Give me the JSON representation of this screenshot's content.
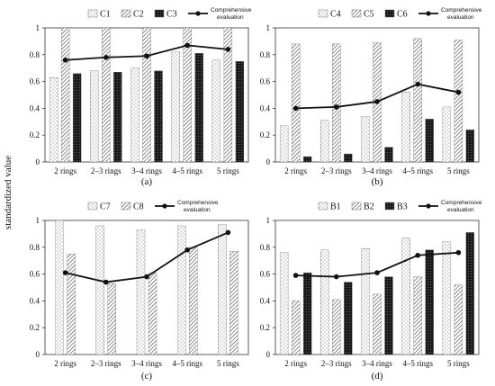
{
  "y_axis_label": "standardized value",
  "chart_data": [
    {
      "type": "bar",
      "panel_label": "(a)",
      "categories": [
        "2 rings",
        "2–3 rings",
        "3–4 rings",
        "4–5 rings",
        "5 rings"
      ],
      "series": [
        {
          "name": "C1",
          "values": [
            0.63,
            0.68,
            0.7,
            0.82,
            0.76
          ],
          "pattern": "dots"
        },
        {
          "name": "C2",
          "values": [
            1.0,
            1.0,
            1.0,
            1.0,
            1.0
          ],
          "pattern": "diag"
        },
        {
          "name": "C3",
          "values": [
            0.66,
            0.67,
            0.68,
            0.81,
            0.75
          ],
          "pattern": "dark"
        }
      ],
      "line": {
        "name": "Comprehensive evaluation",
        "values": [
          0.76,
          0.78,
          0.79,
          0.87,
          0.84
        ]
      },
      "ylim": [
        0,
        1
      ],
      "yticks": [
        "0",
        "0.2",
        "0.4",
        "0.6",
        "0.8",
        "1"
      ],
      "legend": "top"
    },
    {
      "type": "bar",
      "panel_label": "(b)",
      "categories": [
        "2 rings",
        "2–3 rings",
        "3–4 rings",
        "4–5 rings",
        "5 rings"
      ],
      "series": [
        {
          "name": "C4",
          "values": [
            0.27,
            0.31,
            0.34,
            0.52,
            0.41
          ],
          "pattern": "dots"
        },
        {
          "name": "C5",
          "values": [
            0.88,
            0.88,
            0.89,
            0.92,
            0.91
          ],
          "pattern": "diag"
        },
        {
          "name": "C6",
          "values": [
            0.04,
            0.06,
            0.11,
            0.32,
            0.24
          ],
          "pattern": "dark"
        }
      ],
      "line": {
        "name": "Comprehensive evaluation",
        "values": [
          0.4,
          0.41,
          0.45,
          0.58,
          0.52
        ]
      },
      "ylim": [
        0,
        1
      ],
      "yticks": [
        "0",
        "0.2",
        "0.4",
        "0.6",
        "0.8",
        "1"
      ],
      "legend": "top"
    },
    {
      "type": "bar",
      "panel_label": "(c)",
      "categories": [
        "2 rings",
        "2–3 rings",
        "3–4 rings",
        "4–5 rings",
        "5 rings"
      ],
      "series": [
        {
          "name": "C7",
          "values": [
            1.0,
            0.96,
            0.93,
            0.96,
            0.97
          ],
          "pattern": "dots"
        },
        {
          "name": "C8",
          "values": [
            0.75,
            0.53,
            0.61,
            0.8,
            0.77
          ],
          "pattern": "diag"
        }
      ],
      "line": {
        "name": "Comprehensive evaluation",
        "values": [
          0.61,
          0.54,
          0.58,
          0.78,
          0.91
        ]
      },
      "ylim": [
        0,
        1
      ],
      "yticks": [
        "0",
        "0.2",
        "0.4",
        "0.6",
        "0.8",
        "1"
      ],
      "legend": "top"
    },
    {
      "type": "bar",
      "panel_label": "(d)",
      "categories": [
        "2 rings",
        "2–3 rings",
        "3–4 rings",
        "4–5 rings",
        "5 rings"
      ],
      "series": [
        {
          "name": "B1",
          "values": [
            0.76,
            0.78,
            0.79,
            0.87,
            0.84
          ],
          "pattern": "dots"
        },
        {
          "name": "B2",
          "values": [
            0.4,
            0.41,
            0.45,
            0.58,
            0.52
          ],
          "pattern": "diag"
        },
        {
          "name": "B3",
          "values": [
            0.61,
            0.54,
            0.58,
            0.78,
            0.91
          ],
          "pattern": "dark"
        }
      ],
      "line": {
        "name": "Comprehensive evaluation",
        "values": [
          0.59,
          0.58,
          0.61,
          0.74,
          0.76
        ]
      },
      "ylim": [
        0,
        1
      ],
      "yticks": [
        "0",
        "0.2",
        "0.4",
        "0.6",
        "0.8",
        "1"
      ],
      "legend": "top"
    }
  ]
}
